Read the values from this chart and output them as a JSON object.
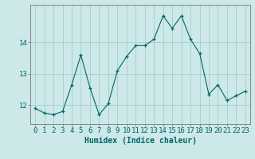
{
  "x": [
    0,
    1,
    2,
    3,
    4,
    5,
    6,
    7,
    8,
    9,
    10,
    11,
    12,
    13,
    14,
    15,
    16,
    17,
    18,
    19,
    20,
    21,
    22,
    23
  ],
  "y": [
    11.9,
    11.75,
    11.7,
    11.8,
    12.65,
    13.6,
    12.55,
    11.7,
    12.05,
    13.1,
    13.55,
    13.9,
    13.9,
    14.1,
    14.85,
    14.45,
    14.85,
    14.1,
    13.65,
    12.35,
    12.65,
    12.15,
    12.3,
    12.45
  ],
  "xlabel": "Humidex (Indice chaleur)",
  "yticks": [
    12,
    13,
    14
  ],
  "ylim": [
    11.4,
    15.2
  ],
  "xlim": [
    -0.5,
    23.5
  ],
  "bg_color": "#cce8e8",
  "grid_color": "#aacccc",
  "line_color": "#006666",
  "marker_color": "#006666",
  "xlabel_fontsize": 7,
  "tick_fontsize": 6.5
}
